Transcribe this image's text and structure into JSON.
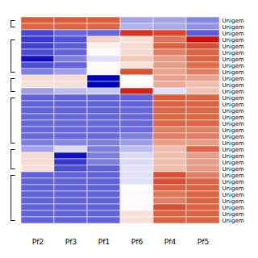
{
  "chart_data": {
    "type": "heatmap",
    "columns": [
      "Pf2",
      "Pf3",
      "Pf1",
      "Pf6",
      "Pf4",
      "Pf5"
    ],
    "rows": [
      "Unigem",
      "Unigem",
      "Unigem",
      "Unigem",
      "Unigem",
      "Unigem",
      "Unigem",
      "Unigem",
      "Unigem",
      "Unigem",
      "Unigem",
      "Unigem",
      "Unigem",
      "Unigem",
      "Unigem",
      "Unigem",
      "Unigem",
      "Unigem",
      "Unigem",
      "Unigem",
      "Unigem",
      "Unigem",
      "Unigem",
      "Unigem",
      "Unigem",
      "Unigem",
      "Unigem",
      "Unigem",
      "Unigem",
      "Unigem",
      "Unigem",
      "Unigem"
    ],
    "matrix": [
      [
        0.55,
        0.55,
        0.55,
        -0.3,
        -0.3,
        -0.4
      ],
      [
        0.5,
        0.5,
        0.5,
        -0.25,
        -0.28,
        -0.35
      ],
      [
        -0.65,
        -0.5,
        -0.5,
        0.75,
        0.65,
        -0.55
      ],
      [
        -0.72,
        -0.6,
        0.15,
        0.1,
        0.45,
        0.92
      ],
      [
        -0.68,
        -0.55,
        0.05,
        0.12,
        0.52,
        0.62
      ],
      [
        -0.62,
        -0.52,
        0.02,
        0.12,
        0.42,
        0.52
      ],
      [
        -0.92,
        -0.42,
        -0.1,
        0.18,
        0.32,
        0.52
      ],
      [
        -0.62,
        -0.52,
        0.02,
        0.1,
        0.32,
        0.48
      ],
      [
        -0.42,
        -0.32,
        0.02,
        0.6,
        0.3,
        0.42
      ],
      [
        0.12,
        0.12,
        -1.0,
        0.0,
        0.3,
        0.3
      ],
      [
        0.1,
        0.1,
        -1.0,
        0.0,
        0.28,
        0.22
      ],
      [
        -0.32,
        -0.22,
        -0.18,
        0.82,
        -0.1,
        0.2
      ],
      [
        -0.52,
        -0.52,
        -0.52,
        -0.52,
        0.55,
        0.52
      ],
      [
        -0.52,
        -0.52,
        -0.52,
        -0.52,
        0.52,
        0.52
      ],
      [
        -0.52,
        -0.52,
        -0.52,
        -0.5,
        0.5,
        0.5
      ],
      [
        -0.5,
        -0.5,
        -0.5,
        -0.5,
        0.5,
        0.5
      ],
      [
        -0.5,
        -0.5,
        -0.5,
        -0.5,
        0.5,
        0.5
      ],
      [
        -0.5,
        -0.5,
        -0.5,
        -0.48,
        0.42,
        0.42
      ],
      [
        -0.5,
        -0.5,
        -0.5,
        -0.42,
        0.42,
        0.42
      ],
      [
        -0.42,
        -0.4,
        -0.42,
        -0.32,
        0.32,
        0.32
      ],
      [
        -0.3,
        -0.12,
        -0.42,
        -0.22,
        0.22,
        0.52
      ],
      [
        0.12,
        -0.92,
        -0.42,
        -0.12,
        0.22,
        0.32
      ],
      [
        0.12,
        -0.72,
        -0.42,
        -0.12,
        0.22,
        0.32
      ],
      [
        0.1,
        -0.62,
        -0.52,
        -0.1,
        0.22,
        0.32
      ],
      [
        -0.52,
        -0.52,
        -0.52,
        -0.1,
        0.62,
        0.42
      ],
      [
        -0.52,
        -0.52,
        -0.52,
        -0.1,
        0.62,
        0.52
      ],
      [
        -0.52,
        -0.52,
        -0.52,
        0.0,
        0.52,
        0.52
      ],
      [
        -0.52,
        -0.52,
        -0.52,
        0.02,
        0.45,
        0.52
      ],
      [
        -0.52,
        -0.52,
        -0.52,
        0.02,
        0.42,
        0.52
      ],
      [
        -0.52,
        -0.52,
        -0.52,
        0.02,
        0.62,
        0.52
      ],
      [
        -0.52,
        -0.52,
        -0.52,
        0.1,
        0.52,
        0.52
      ],
      [
        -0.52,
        -0.52,
        -0.52,
        0.1,
        0.52,
        0.52
      ]
    ],
    "vmin": -1.0,
    "vmax": 1.0,
    "colors": [
      "#0000bb",
      "#6666dd",
      "#ffffff",
      "#dd6644",
      "#cc0000"
    ],
    "dendrogram_groups": [
      [
        0,
        1
      ],
      [
        3,
        8
      ],
      [
        9,
        11
      ],
      [
        12,
        19
      ],
      [
        20,
        23
      ],
      [
        24,
        31
      ]
    ]
  }
}
